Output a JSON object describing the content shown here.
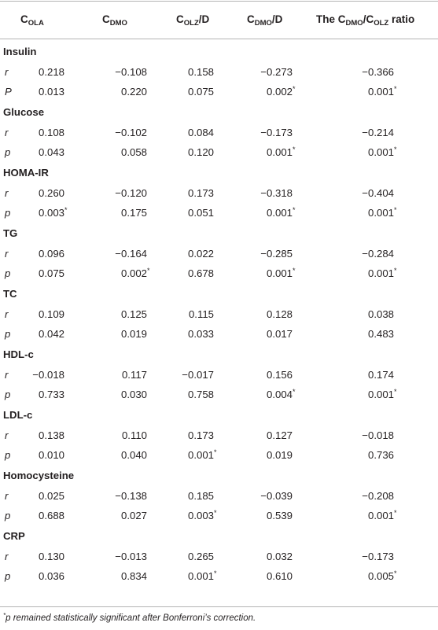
{
  "header": {
    "col1": {
      "base": "C",
      "sub": "OLA"
    },
    "col2": {
      "base": "C",
      "sub": "DMO"
    },
    "col3": {
      "base": "C",
      "sub": "OLZ",
      "suffix": "/D"
    },
    "col4": {
      "base": "C",
      "sub": "DMO",
      "suffix": "/D"
    },
    "col5": {
      "prefix": "The C",
      "sub1": "DMO",
      "mid": "/C",
      "sub2": "OLZ",
      "suffix": " ratio"
    }
  },
  "groups": [
    {
      "label": "Insulin",
      "r": {
        "label": "r",
        "values": [
          "0.218",
          "−0.108",
          "0.158",
          "−0.273",
          "−0.366"
        ]
      },
      "p": {
        "label": "P",
        "values": [
          {
            "v": "0.013"
          },
          {
            "v": "0.220"
          },
          {
            "v": "0.075"
          },
          {
            "v": "0.002",
            "s": "*"
          },
          {
            "v": "0.001",
            "s": "*"
          }
        ]
      }
    },
    {
      "label": "Glucose",
      "r": {
        "label": "r",
        "values": [
          "0.108",
          "−0.102",
          "0.084",
          "−0.173",
          "−0.214"
        ]
      },
      "p": {
        "label": "p",
        "values": [
          {
            "v": "0.043"
          },
          {
            "v": "0.058"
          },
          {
            "v": "0.120"
          },
          {
            "v": "0.001",
            "s": "*"
          },
          {
            "v": "0.001",
            "s": "*"
          }
        ]
      }
    },
    {
      "label": "HOMA-IR",
      "r": {
        "label": "r",
        "values": [
          "0.260",
          "−0.120",
          "0.173",
          "−0.318",
          "−0.404"
        ]
      },
      "p": {
        "label": "p",
        "values": [
          {
            "v": "0.003",
            "s": "*"
          },
          {
            "v": "0.175"
          },
          {
            "v": "0.051"
          },
          {
            "v": "0.001",
            "s": "*"
          },
          {
            "v": "0.001",
            "s": "*"
          }
        ]
      }
    },
    {
      "label": "TG",
      "r": {
        "label": "r",
        "values": [
          "0.096",
          "−0.164",
          "0.022",
          "−0.285",
          "−0.284"
        ]
      },
      "p": {
        "label": "p",
        "values": [
          {
            "v": "0.075"
          },
          {
            "v": "0.002",
            "s": "*"
          },
          {
            "v": "0.678"
          },
          {
            "v": "0.001",
            "s": "*"
          },
          {
            "v": "0.001",
            "s": "*"
          }
        ]
      }
    },
    {
      "label": "TC",
      "r": {
        "label": "r",
        "values": [
          "0.109",
          "0.125",
          "0.115",
          "0.128",
          "0.038"
        ]
      },
      "p": {
        "label": "p",
        "values": [
          {
            "v": "0.042"
          },
          {
            "v": "0.019"
          },
          {
            "v": "0.033"
          },
          {
            "v": "0.017"
          },
          {
            "v": "0.483"
          }
        ]
      }
    },
    {
      "label": "HDL-c",
      "r": {
        "label": "r",
        "values": [
          "−0.018",
          "0.117",
          "−0.017",
          "0.156",
          "0.174"
        ]
      },
      "p": {
        "label": "p",
        "values": [
          {
            "v": "0.733"
          },
          {
            "v": "0.030"
          },
          {
            "v": "0.758"
          },
          {
            "v": "0.004",
            "s": "*"
          },
          {
            "v": "0.001",
            "s": "*"
          }
        ]
      }
    },
    {
      "label": "LDL-c",
      "r": {
        "label": "r",
        "values": [
          "0.138",
          "0.110",
          "0.173",
          "0.127",
          "−0.018"
        ]
      },
      "p": {
        "label": "p",
        "values": [
          {
            "v": "0.010"
          },
          {
            "v": "0.040"
          },
          {
            "v": "0.001",
            "s": "*"
          },
          {
            "v": "0.019"
          },
          {
            "v": "0.736"
          }
        ]
      }
    },
    {
      "label": "Homocysteine",
      "r": {
        "label": "r",
        "values": [
          "0.025",
          "−0.138",
          "0.185",
          "−0.039",
          "−0.208"
        ]
      },
      "p": {
        "label": "p",
        "values": [
          {
            "v": "0.688"
          },
          {
            "v": "0.027"
          },
          {
            "v": "0.003",
            "s": "*"
          },
          {
            "v": "0.539"
          },
          {
            "v": "0.001",
            "s": "*"
          }
        ]
      }
    },
    {
      "label": "CRP",
      "r": {
        "label": "r",
        "values": [
          "0.130",
          "−0.013",
          "0.265",
          "0.032",
          "−0.173"
        ]
      },
      "p": {
        "label": "p",
        "values": [
          {
            "v": "0.036"
          },
          {
            "v": "0.834"
          },
          {
            "v": "0.001",
            "s": "*"
          },
          {
            "v": "0.610"
          },
          {
            "v": "0.005",
            "s": "*"
          }
        ]
      }
    }
  ],
  "footnote": {
    "mark": "*",
    "text": "p remained statistically significant after Bonferroni’s correction."
  }
}
